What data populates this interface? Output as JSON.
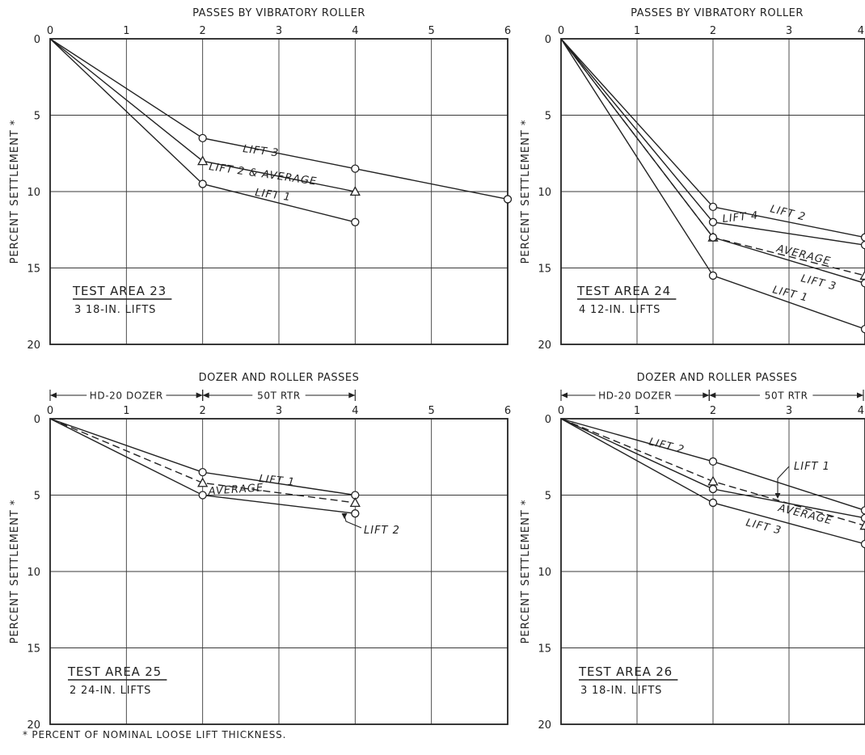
{
  "footnote": "* PERCENT OF NOMINAL LOOSE LIFT THICKNESS.",
  "chart_data": [
    {
      "type": "line",
      "title": "PASSES BY VIBRATORY ROLLER",
      "ylabel": "PERCENT SETTLEMENT *",
      "area_title": "TEST AREA 23",
      "area_sub": "3 18-IN. LIFTS",
      "xlim": [
        0,
        6
      ],
      "ylim": [
        0,
        20
      ],
      "y_inverted": true,
      "grid": true,
      "xticks": [
        "0",
        "1",
        "2",
        "3",
        "4",
        "5",
        "6"
      ],
      "yticks": [
        "0",
        "5",
        "10",
        "15",
        "20"
      ],
      "series": [
        {
          "name": "LIFT 3",
          "x": [
            0,
            2,
            4,
            6
          ],
          "y": [
            0,
            6.5,
            8.5,
            10.5
          ],
          "marker": "circle",
          "dash": false
        },
        {
          "name": "LIFT 2 & AVERAGE",
          "x": [
            0,
            2,
            4
          ],
          "y": [
            0,
            8,
            10
          ],
          "marker": "triangle",
          "dash": false
        },
        {
          "name": "LIFT 1",
          "x": [
            0,
            2,
            4
          ],
          "y": [
            0,
            9.5,
            12
          ],
          "marker": "circle",
          "dash": false
        }
      ]
    },
    {
      "type": "line",
      "title": "PASSES BY VIBRATORY ROLLER",
      "ylabel": "PERCENT SETTLEMENT *",
      "area_title": "TEST AREA 24",
      "area_sub": "4 12-IN. LIFTS",
      "xlim": [
        0,
        4
      ],
      "ylim": [
        0,
        20
      ],
      "y_inverted": true,
      "grid": true,
      "xticks": [
        "0",
        "1",
        "2",
        "3",
        "4"
      ],
      "yticks": [
        "0",
        "5",
        "10",
        "15",
        "20"
      ],
      "series": [
        {
          "name": "LIFT 2",
          "x": [
            0,
            2,
            4
          ],
          "y": [
            0,
            11,
            13
          ],
          "marker": "circle",
          "dash": false
        },
        {
          "name": "LIFT 4",
          "x": [
            0,
            2,
            4
          ],
          "y": [
            0,
            12,
            13.5
          ],
          "marker": "circle",
          "dash": false
        },
        {
          "name": "AVERAGE",
          "x": [
            0,
            2,
            4
          ],
          "y": [
            0,
            13,
            15.5
          ],
          "marker": "triangle",
          "dash": true
        },
        {
          "name": "LIFT 3",
          "x": [
            0,
            2,
            4
          ],
          "y": [
            0,
            13,
            16
          ],
          "marker": "circle",
          "dash": false
        },
        {
          "name": "LIFT 1",
          "x": [
            0,
            2,
            4
          ],
          "y": [
            0,
            15.5,
            19
          ],
          "marker": "circle",
          "dash": false
        }
      ]
    },
    {
      "type": "line",
      "title": "DOZER AND ROLLER PASSES",
      "ylabel": "PERCENT SETTLEMENT *",
      "area_title": "TEST AREA 25",
      "area_sub": "2 24-IN. LIFTS",
      "phase_labels": [
        "HD-20 DOZER",
        "50T RTR"
      ],
      "phase_ranges": [
        [
          0,
          2
        ],
        [
          2,
          4
        ]
      ],
      "xlim": [
        0,
        6
      ],
      "ylim": [
        0,
        20
      ],
      "y_inverted": true,
      "grid": true,
      "xticks": [
        "0",
        "1",
        "2",
        "3",
        "4",
        "5",
        "6"
      ],
      "yticks": [
        "0",
        "5",
        "10",
        "15",
        "20"
      ],
      "series": [
        {
          "name": "LIFT 1",
          "x": [
            0,
            2,
            4
          ],
          "y": [
            0,
            3.5,
            5
          ],
          "marker": "circle",
          "dash": false
        },
        {
          "name": "AVERAGE",
          "x": [
            0,
            2,
            4
          ],
          "y": [
            0,
            4.2,
            5.5
          ],
          "marker": "triangle",
          "dash": true
        },
        {
          "name": "LIFT 2",
          "x": [
            0,
            2,
            4
          ],
          "y": [
            0,
            5,
            6.2
          ],
          "marker": "circle",
          "dash": false
        }
      ]
    },
    {
      "type": "line",
      "title": "DOZER AND ROLLER PASSES",
      "ylabel": "PERCENT SETTLEMENT *",
      "area_title": "TEST AREA 26",
      "area_sub": "3 18-IN. LIFTS",
      "phase_labels": [
        "HD-20 DOZER",
        "50T RTR"
      ],
      "phase_ranges": [
        [
          0,
          1.95
        ],
        [
          1.95,
          4
        ]
      ],
      "xlim": [
        0,
        4
      ],
      "ylim": [
        0,
        20
      ],
      "y_inverted": true,
      "grid": true,
      "xticks": [
        "0",
        "1",
        "2",
        "3",
        "4"
      ],
      "yticks": [
        "0",
        "5",
        "10",
        "15",
        "20"
      ],
      "series": [
        {
          "name": "LIFT 2",
          "x": [
            0,
            2,
            4
          ],
          "y": [
            0,
            2.8,
            6
          ],
          "marker": "circle",
          "dash": false
        },
        {
          "name": "LIFT 1",
          "x": [
            0,
            2,
            4
          ],
          "y": [
            0,
            4.6,
            6.5
          ],
          "marker": "circle",
          "dash": false
        },
        {
          "name": "AVERAGE",
          "x": [
            0,
            2,
            4
          ],
          "y": [
            0,
            4.1,
            7
          ],
          "marker": "triangle",
          "dash": true
        },
        {
          "name": "LIFT 3",
          "x": [
            0,
            2,
            4
          ],
          "y": [
            0,
            5.5,
            8.2
          ],
          "marker": "circle",
          "dash": false
        }
      ]
    }
  ]
}
